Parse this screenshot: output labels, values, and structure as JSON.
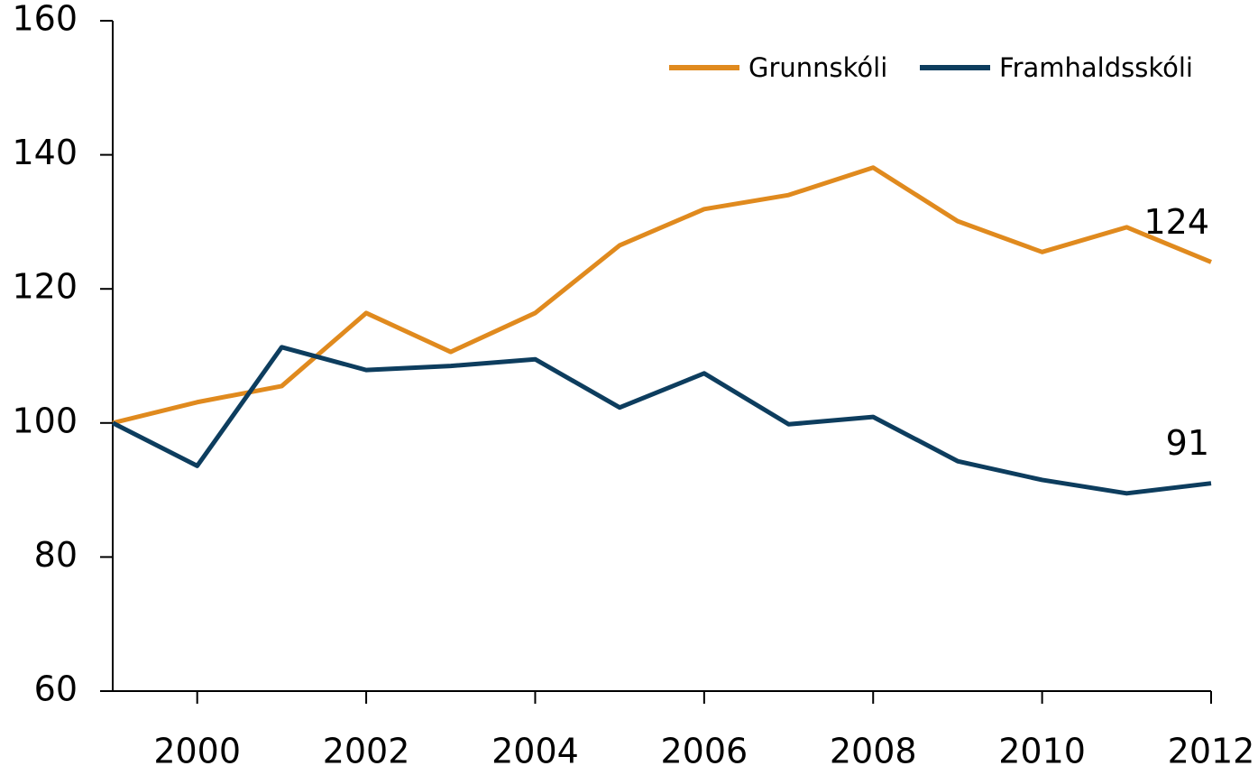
{
  "chart_data": {
    "type": "line",
    "x": [
      1999,
      2000,
      2001,
      2002,
      2003,
      2004,
      2005,
      2006,
      2007,
      2008,
      2009,
      2010,
      2011,
      2012
    ],
    "series": [
      {
        "name": "Grunnskóli",
        "color": "#e08a1e",
        "values": [
          100,
          103.1,
          105.5,
          116.4,
          110.6,
          116.4,
          126.5,
          131.9,
          134.0,
          138.1,
          130.1,
          125.5,
          129.2,
          124
        ]
      },
      {
        "name": "Framhaldsskóli",
        "color": "#0d3d5e",
        "values": [
          100,
          93.6,
          111.3,
          107.9,
          108.5,
          109.5,
          102.3,
          107.4,
          99.8,
          100.9,
          94.3,
          91.5,
          89.5,
          91
        ]
      }
    ],
    "xlim": [
      1999,
      2012
    ],
    "xticks": [
      2000,
      2002,
      2004,
      2006,
      2008,
      2010,
      2012
    ],
    "ylim": [
      60,
      160
    ],
    "yticks": [
      60,
      80,
      100,
      120,
      140,
      160
    ],
    "grid": false,
    "legend": "top-right"
  }
}
